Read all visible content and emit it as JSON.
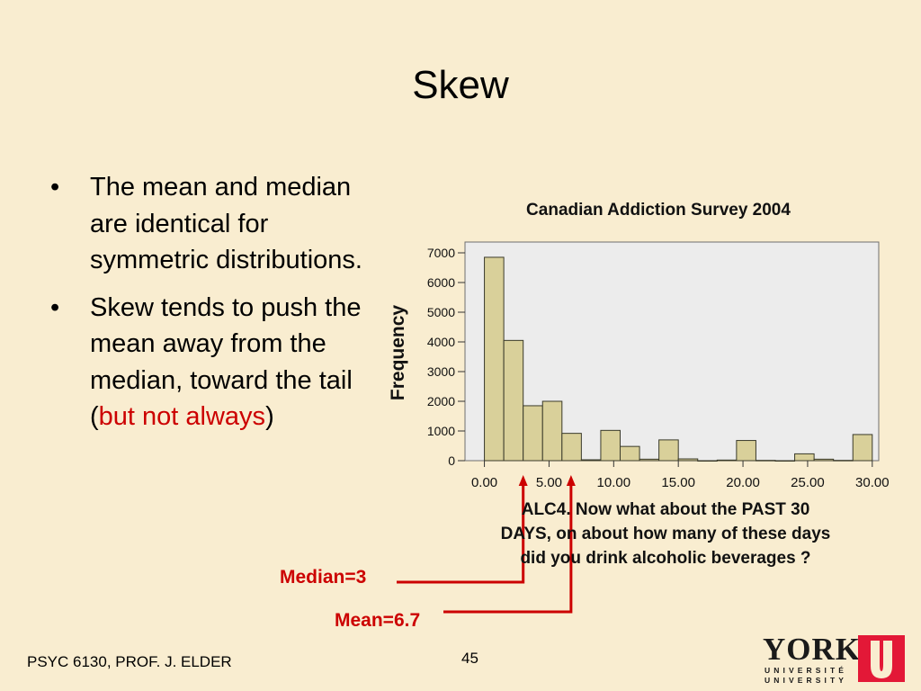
{
  "slide": {
    "title": "Skew",
    "bullets": [
      {
        "text": "The mean and median are identical for symmetric distributions."
      },
      {
        "before": "Skew tends to push the mean away from the median, toward the tail (",
        "highlight": "but not always",
        "after": ")"
      }
    ],
    "footer": "PSYC 6130, PROF. J. ELDER",
    "page_number": "45"
  },
  "annotations": {
    "median": "Median=3",
    "mean": "Mean=6.7",
    "median_value": 3,
    "mean_value": 6.7,
    "color": "#cc0000"
  },
  "logo": {
    "word": "YORK",
    "line1": "UNIVERSITÉ",
    "line2": "UNIVERSITY",
    "color": "#e31837"
  },
  "chart_data": {
    "type": "bar",
    "title": "Canadian Addiction Survey 2004",
    "ylabel": "Frequency",
    "xlabel_lines": [
      "ALC4.   Now what about the PAST 30",
      "DAYS, on about how many of these days",
      "did you drink alcoholic beverages ?"
    ],
    "bin_width": 1.5,
    "bin_starts": [
      0,
      1.5,
      3,
      4.5,
      6,
      7.5,
      9,
      10.5,
      12,
      13.5,
      15,
      16.5,
      18,
      19.5,
      21,
      22.5,
      24,
      25.5,
      27,
      28.5
    ],
    "values": [
      6850,
      4050,
      1850,
      2000,
      920,
      30,
      1020,
      480,
      50,
      700,
      60,
      0,
      20,
      680,
      10,
      0,
      230,
      50,
      10,
      880
    ],
    "xlim": [
      -1.5,
      30.5
    ],
    "ylim": [
      0,
      7000
    ],
    "xticks": [
      0,
      5,
      10,
      15,
      20,
      25,
      30
    ],
    "xtick_labels": [
      "0.00",
      "5.00",
      "10.00",
      "15.00",
      "20.00",
      "25.00",
      "30.00"
    ],
    "yticks": [
      0,
      1000,
      2000,
      3000,
      4000,
      5000,
      6000,
      7000
    ],
    "ytick_labels": [
      "0",
      "1000",
      "2000",
      "3000",
      "4000",
      "5000",
      "6000",
      "7000"
    ],
    "bar_color": "#d9d09a",
    "plot_bg": "#ececec",
    "grid": false,
    "legend": "none"
  }
}
